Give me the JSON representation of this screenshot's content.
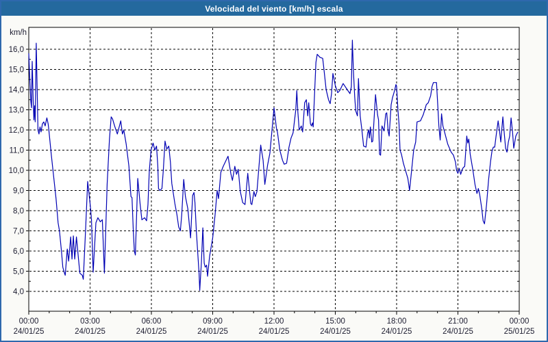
{
  "window": {
    "title": "Velocidad del viento [km/h] escala"
  },
  "colors": {
    "header_bg": "#24699e",
    "header_text": "#ffffff",
    "outer_border": "#2e68ad",
    "page_bg": "#fafaf7",
    "plot_bg": "#ffffff",
    "line": "#0000b3",
    "grid": "#000000",
    "axis": "#000000",
    "tick_text": "#1c1c30"
  },
  "chart": {
    "y_unit_label": "km/h",
    "y_ticks": [
      "16,0",
      "15,0",
      "14,0",
      "13,0",
      "12,0",
      "11,0",
      "10,0",
      "9,0",
      "8,0",
      "7,0",
      "6,0",
      "5,0",
      "4,0"
    ],
    "x_ticks": [
      {
        "time": "00:00",
        "date": "24/01/25"
      },
      {
        "time": "03:00",
        "date": "24/01/25"
      },
      {
        "time": "06:00",
        "date": "24/01/25"
      },
      {
        "time": "09:00",
        "date": "24/01/25"
      },
      {
        "time": "12:00",
        "date": "24/01/25"
      },
      {
        "time": "15:00",
        "date": "24/01/25"
      },
      {
        "time": "18:00",
        "date": "24/01/25"
      },
      {
        "time": "21:00",
        "date": "24/01/25"
      },
      {
        "time": "00:00",
        "date": "25/01/25"
      }
    ]
  },
  "chart_data": {
    "type": "line",
    "title": "Velocidad del viento [km/h] escala",
    "xlabel": "",
    "ylabel": "km/h",
    "ylim": [
      4,
      16
    ],
    "y_tick_values": [
      16,
      15,
      14,
      13,
      12,
      11,
      10,
      9,
      8,
      7,
      6,
      5,
      4
    ],
    "x_tick_minutes": [
      0,
      180,
      360,
      540,
      720,
      900,
      1080,
      1260,
      1440
    ],
    "x_minor_tick_step_minutes": 60,
    "grid": "dashed",
    "legend": "none",
    "series": [
      {
        "name": "Velocidad del viento",
        "color": "#0000b3",
        "points": [
          [
            0,
            15.8
          ],
          [
            2,
            14.9
          ],
          [
            4,
            14.2
          ],
          [
            6,
            13.4
          ],
          [
            8,
            13.1
          ],
          [
            10,
            15.4
          ],
          [
            13,
            13.4
          ],
          [
            15,
            12.5
          ],
          [
            17,
            13.2
          ],
          [
            19,
            12.4
          ],
          [
            22,
            16.3
          ],
          [
            25,
            13.8
          ],
          [
            27,
            12.0
          ],
          [
            30,
            11.8
          ],
          [
            33,
            12.15
          ],
          [
            36,
            11.9
          ],
          [
            40,
            12.3
          ],
          [
            44,
            12.4
          ],
          [
            48,
            12.2
          ],
          [
            53,
            12.6
          ],
          [
            57,
            12.3
          ],
          [
            59,
            12.0
          ],
          [
            66,
            10.8
          ],
          [
            73,
            9.7
          ],
          [
            80,
            8.6
          ],
          [
            86,
            7.4
          ],
          [
            90,
            7.0
          ],
          [
            96,
            6.0
          ],
          [
            100,
            5.2
          ],
          [
            104,
            4.95
          ],
          [
            107,
            4.8
          ],
          [
            113,
            6.1
          ],
          [
            117,
            5.5
          ],
          [
            123,
            6.7
          ],
          [
            127,
            5.6
          ],
          [
            131,
            6.75
          ],
          [
            135,
            5.6
          ],
          [
            140,
            6.7
          ],
          [
            146,
            5.6
          ],
          [
            150,
            4.9
          ],
          [
            157,
            4.8
          ],
          [
            160,
            4.6
          ],
          [
            167,
            7.1
          ],
          [
            173,
            9.45
          ],
          [
            180,
            8.35
          ],
          [
            184,
            7.6
          ],
          [
            189,
            4.95
          ],
          [
            197,
            7.4
          ],
          [
            203,
            7.65
          ],
          [
            210,
            7.45
          ],
          [
            216,
            7.55
          ],
          [
            222,
            4.9
          ],
          [
            230,
            9.3
          ],
          [
            237,
            11.55
          ],
          [
            242,
            12.65
          ],
          [
            246,
            12.55
          ],
          [
            252,
            12.2
          ],
          [
            260,
            11.8
          ],
          [
            270,
            12.45
          ],
          [
            275,
            11.8
          ],
          [
            279,
            12.0
          ],
          [
            286,
            11.3
          ],
          [
            294,
            10.2
          ],
          [
            300,
            8.7
          ],
          [
            303,
            8.65
          ],
          [
            307,
            7.0
          ],
          [
            310,
            6.0
          ],
          [
            313,
            5.8
          ],
          [
            320,
            9.6
          ],
          [
            327,
            8.3
          ],
          [
            332,
            7.55
          ],
          [
            340,
            7.65
          ],
          [
            346,
            7.5
          ],
          [
            350,
            8.3
          ],
          [
            354,
            10.0
          ],
          [
            359,
            11.0
          ],
          [
            365,
            11.35
          ],
          [
            370,
            11.0
          ],
          [
            375,
            11.2
          ],
          [
            379,
            10.2
          ],
          [
            381,
            9.1
          ],
          [
            385,
            9.0
          ],
          [
            391,
            9.1
          ],
          [
            395,
            10.0
          ],
          [
            400,
            11.45
          ],
          [
            405,
            11.05
          ],
          [
            411,
            11.2
          ],
          [
            416,
            10.4
          ],
          [
            420,
            9.35
          ],
          [
            429,
            8.35
          ],
          [
            435,
            7.8
          ],
          [
            440,
            7.2
          ],
          [
            445,
            7.0
          ],
          [
            449,
            7.8
          ],
          [
            455,
            9.55
          ],
          [
            460,
            8.7
          ],
          [
            467,
            8.1
          ],
          [
            475,
            6.65
          ],
          [
            481,
            8.75
          ],
          [
            485,
            8.9
          ],
          [
            488,
            8.4
          ],
          [
            492,
            7.0
          ],
          [
            496,
            5.95
          ],
          [
            500,
            4.9
          ],
          [
            502,
            4.05
          ],
          [
            507,
            5.5
          ],
          [
            511,
            7.15
          ],
          [
            515,
            5.4
          ],
          [
            518,
            5.2
          ],
          [
            522,
            5.3
          ],
          [
            525,
            4.75
          ],
          [
            531,
            5.75
          ],
          [
            540,
            6.65
          ],
          [
            547,
            7.8
          ],
          [
            553,
            9.0
          ],
          [
            557,
            8.6
          ],
          [
            564,
            9.9
          ],
          [
            571,
            10.2
          ],
          [
            585,
            10.7
          ],
          [
            593,
            9.85
          ],
          [
            598,
            9.5
          ],
          [
            605,
            10.2
          ],
          [
            610,
            9.8
          ],
          [
            615,
            10.05
          ],
          [
            621,
            8.95
          ],
          [
            628,
            8.4
          ],
          [
            635,
            8.3
          ],
          [
            643,
            9.85
          ],
          [
            648,
            9.0
          ],
          [
            652,
            8.35
          ],
          [
            655,
            8.3
          ],
          [
            661,
            8.95
          ],
          [
            665,
            8.7
          ],
          [
            670,
            8.95
          ],
          [
            675,
            10.0
          ],
          [
            681,
            11.25
          ],
          [
            688,
            10.5
          ],
          [
            693,
            9.3
          ],
          [
            701,
            10.25
          ],
          [
            708,
            10.85
          ],
          [
            715,
            12.15
          ],
          [
            720,
            13.1
          ],
          [
            727,
            12.1
          ],
          [
            730,
            11.9
          ],
          [
            737,
            11.0
          ],
          [
            745,
            10.5
          ],
          [
            750,
            10.3
          ],
          [
            757,
            10.35
          ],
          [
            764,
            11.15
          ],
          [
            770,
            11.6
          ],
          [
            776,
            11.85
          ],
          [
            784,
            13.0
          ],
          [
            787,
            13.95
          ],
          [
            790,
            12.9
          ],
          [
            794,
            12.0
          ],
          [
            800,
            12.2
          ],
          [
            804,
            11.9
          ],
          [
            810,
            13.35
          ],
          [
            815,
            13.5
          ],
          [
            819,
            12.7
          ],
          [
            822,
            13.35
          ],
          [
            827,
            12.3
          ],
          [
            830,
            12.2
          ],
          [
            833,
            12.35
          ],
          [
            835,
            12.15
          ],
          [
            837,
            13.0
          ],
          [
            843,
            15.35
          ],
          [
            847,
            15.75
          ],
          [
            855,
            15.6
          ],
          [
            863,
            15.55
          ],
          [
            867,
            14.95
          ],
          [
            873,
            14.0
          ],
          [
            880,
            13.5
          ],
          [
            885,
            13.3
          ],
          [
            889,
            13.8
          ],
          [
            893,
            14.8
          ],
          [
            900,
            14.2
          ],
          [
            907,
            13.85
          ],
          [
            913,
            13.95
          ],
          [
            923,
            14.3
          ],
          [
            937,
            13.95
          ],
          [
            943,
            13.8
          ],
          [
            947,
            14.15
          ],
          [
            950,
            16.45
          ],
          [
            953,
            14.95
          ],
          [
            957,
            13.65
          ],
          [
            960,
            12.95
          ],
          [
            965,
            12.7
          ],
          [
            968,
            14.55
          ],
          [
            973,
            12.7
          ],
          [
            978,
            12.0
          ],
          [
            983,
            11.2
          ],
          [
            990,
            11.15
          ],
          [
            995,
            11.85
          ],
          [
            998,
            12.0
          ],
          [
            1000,
            11.6
          ],
          [
            1003,
            12.15
          ],
          [
            1007,
            11.4
          ],
          [
            1010,
            11.45
          ],
          [
            1018,
            13.75
          ],
          [
            1024,
            12.75
          ],
          [
            1027,
            12.5
          ],
          [
            1030,
            10.8
          ],
          [
            1033,
            10.75
          ],
          [
            1037,
            12.2
          ],
          [
            1043,
            11.95
          ],
          [
            1048,
            12.8
          ],
          [
            1051,
            12.85
          ],
          [
            1055,
            11.95
          ],
          [
            1058,
            11.7
          ],
          [
            1064,
            13.25
          ],
          [
            1068,
            13.6
          ],
          [
            1074,
            13.95
          ],
          [
            1078,
            14.25
          ],
          [
            1080,
            14.15
          ],
          [
            1084,
            12.95
          ],
          [
            1087,
            12.3
          ],
          [
            1090,
            11.0
          ],
          [
            1094,
            10.8
          ],
          [
            1100,
            10.35
          ],
          [
            1106,
            10.0
          ],
          [
            1113,
            9.6
          ],
          [
            1118,
            9.0
          ],
          [
            1124,
            10.0
          ],
          [
            1130,
            11.0
          ],
          [
            1136,
            11.4
          ],
          [
            1140,
            12.4
          ],
          [
            1150,
            12.45
          ],
          [
            1158,
            12.75
          ],
          [
            1167,
            13.25
          ],
          [
            1173,
            13.35
          ],
          [
            1180,
            13.7
          ],
          [
            1184,
            14.15
          ],
          [
            1188,
            14.35
          ],
          [
            1197,
            14.35
          ],
          [
            1200,
            13.45
          ],
          [
            1204,
            12.2
          ],
          [
            1208,
            11.5
          ],
          [
            1212,
            12.8
          ],
          [
            1216,
            12.2
          ],
          [
            1220,
            11.95
          ],
          [
            1227,
            11.5
          ],
          [
            1230,
            11.3
          ],
          [
            1240,
            10.9
          ],
          [
            1247,
            10.75
          ],
          [
            1253,
            10.4
          ],
          [
            1256,
            10.0
          ],
          [
            1260,
            9.85
          ],
          [
            1264,
            10.1
          ],
          [
            1268,
            9.8
          ],
          [
            1274,
            10.1
          ],
          [
            1280,
            10.2
          ],
          [
            1286,
            11.7
          ],
          [
            1289,
            11.35
          ],
          [
            1292,
            11.55
          ],
          [
            1296,
            10.8
          ],
          [
            1304,
            10.0
          ],
          [
            1310,
            9.3
          ],
          [
            1316,
            8.85
          ],
          [
            1320,
            9.1
          ],
          [
            1324,
            8.8
          ],
          [
            1330,
            8.1
          ],
          [
            1334,
            7.5
          ],
          [
            1338,
            7.35
          ],
          [
            1344,
            8.3
          ],
          [
            1350,
            9.55
          ],
          [
            1356,
            10.45
          ],
          [
            1360,
            10.95
          ],
          [
            1364,
            11.15
          ],
          [
            1368,
            11.15
          ],
          [
            1372,
            11.7
          ],
          [
            1376,
            12.2
          ],
          [
            1378,
            12.45
          ],
          [
            1382,
            11.95
          ],
          [
            1386,
            11.4
          ],
          [
            1388,
            11.85
          ],
          [
            1392,
            12.65
          ],
          [
            1396,
            11.85
          ],
          [
            1400,
            11.1
          ],
          [
            1404,
            10.9
          ],
          [
            1408,
            11.4
          ],
          [
            1412,
            11.7
          ],
          [
            1416,
            12.6
          ],
          [
            1420,
            11.95
          ],
          [
            1424,
            11.1
          ],
          [
            1430,
            11.7
          ],
          [
            1436,
            11.9
          ]
        ]
      }
    ]
  }
}
